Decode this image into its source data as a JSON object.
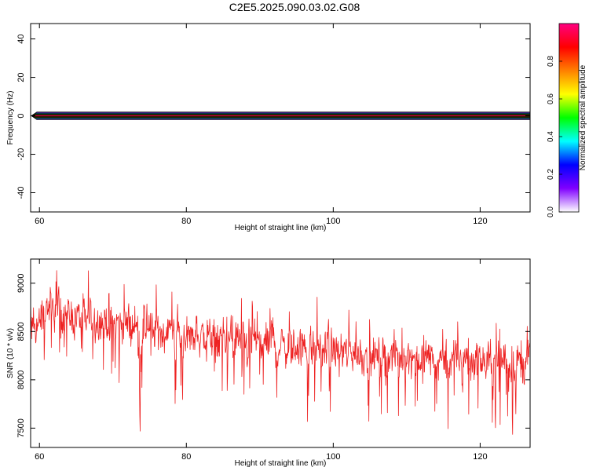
{
  "title": "C2E5.2025.090.03.02.G08",
  "chart_data": [
    {
      "type": "heatmap",
      "title": "C2E5.2025.090.03.02.G08",
      "xlabel": "Height of straight line (km)",
      "ylabel": "Frequency (Hz)",
      "xlim": [
        58.8,
        126.8
      ],
      "ylim": [
        -50,
        48
      ],
      "xticks": [
        60,
        80,
        100,
        120
      ],
      "yticks": [
        40,
        20,
        0,
        -20,
        -40
      ],
      "band": {
        "description_levels": [
          {
            "freq_halfwidth_hz": 2.0,
            "amplitude": 0.1
          },
          {
            "freq_halfwidth_hz": 1.6,
            "amplitude": 0.3
          },
          {
            "freq_halfwidth_hz": 1.2,
            "amplitude": 0.45
          },
          {
            "freq_halfwidth_hz": 0.9,
            "amplitude": 0.6
          },
          {
            "freq_halfwidth_hz": 0.6,
            "amplitude": 0.75
          },
          {
            "freq_halfwidth_hz": 0.3,
            "amplitude": 0.95
          }
        ],
        "center_hz": 0
      },
      "colorbar": {
        "label": "Normalized spectral amplitude",
        "range": [
          0,
          1
        ],
        "ticks": [
          0.0,
          0.2,
          0.4,
          0.6,
          0.8
        ],
        "tick_labels": [
          "0.0",
          "0.2",
          "0.4",
          "0.6",
          "0.8"
        ],
        "colors": [
          "#ffffff",
          "#8000ff",
          "#0000ff",
          "#00ffff",
          "#00ff00",
          "#ffff00",
          "#ff8000",
          "#ff0000",
          "#ff0080"
        ]
      },
      "grid": false
    },
    {
      "type": "line",
      "xlabel": "Height of straight line (km)",
      "ylabel": "SNR (10 * v/v)",
      "xlim": [
        58.8,
        126.8
      ],
      "ylim": [
        7300,
        9250
      ],
      "xticks": [
        60,
        80,
        100,
        120
      ],
      "yticks": [
        9000,
        8500,
        8000,
        7500
      ],
      "series": [
        {
          "color": "#ee2222",
          "x_start": 58.8,
          "x_end": 126.8,
          "trend_x": [
            58.8,
            61,
            65,
            70,
            75,
            80,
            85,
            90,
            95,
            100,
            105,
            110,
            115,
            120,
            126.8
          ],
          "trend_y": [
            8450,
            8750,
            8650,
            8600,
            8500,
            8480,
            8420,
            8380,
            8330,
            8300,
            8250,
            8250,
            8220,
            8200,
            8200
          ],
          "spread": 280,
          "min": 7340,
          "max": 9250
        }
      ],
      "grid": false
    }
  ]
}
